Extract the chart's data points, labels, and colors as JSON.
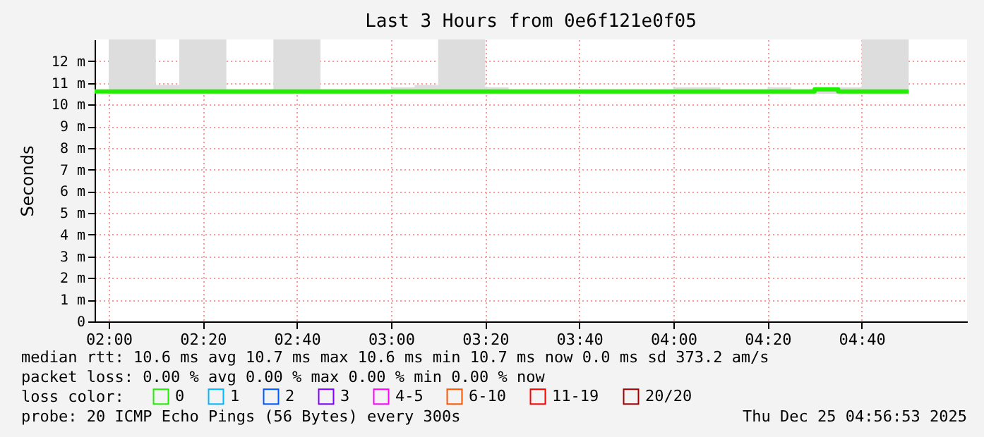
{
  "chart_data": {
    "type": "step",
    "title": "Last 3 Hours from 0e6f121e0f05",
    "ylabel": "Seconds",
    "x": [
      1.95,
      2.0,
      2.0833,
      2.1667,
      2.25,
      2.3333,
      2.4167,
      2.5,
      2.5833,
      2.6667,
      2.75,
      2.8333,
      2.9167,
      3.0,
      3.0833,
      3.1667,
      3.25,
      3.3333,
      3.4167,
      3.5,
      3.5833,
      3.6667,
      3.75,
      3.8333,
      3.9167,
      4.0,
      4.0833,
      4.1667,
      4.25,
      4.3333,
      4.4167,
      4.5,
      4.5833,
      4.6667,
      4.75,
      4.8333
    ],
    "series": [
      {
        "name": "0",
        "color": "#20f000",
        "values": [
          10.6,
          10.6,
          10.6,
          10.6,
          10.6,
          10.6,
          10.6,
          10.6,
          10.6,
          10.6,
          10.6,
          10.6,
          10.6,
          10.6,
          10.6,
          10.6,
          10.6,
          10.6,
          10.6,
          10.6,
          10.6,
          10.6,
          10.6,
          10.6,
          10.6,
          10.6,
          10.6,
          10.6,
          10.6,
          10.6,
          10.6,
          10.7,
          10.6,
          10.6,
          10.6,
          10.6
        ],
        "lower": [
          10.6,
          10.5,
          10.5,
          10.5,
          10.5,
          10.5,
          10.5,
          10.5,
          10.5,
          10.5,
          10.5,
          10.5,
          10.5,
          10.5,
          10.5,
          10.5,
          10.5,
          10.5,
          10.5,
          10.5,
          10.5,
          10.5,
          10.5,
          10.5,
          10.5,
          10.5,
          10.5,
          10.5,
          10.5,
          10.5,
          10.5,
          10.5,
          10.5,
          10.5,
          10.5,
          10.5
        ],
        "upper": [
          10.6,
          13,
          13,
          10.9,
          13,
          13,
          10.7,
          10.7,
          13,
          13,
          10.7,
          10.7,
          10.7,
          10.8,
          10.9,
          13,
          13,
          10.8,
          10.7,
          10.7,
          10.7,
          10.7,
          10.7,
          10.7,
          10.7,
          10.8,
          10.8,
          10.7,
          10.7,
          10.8,
          10.7,
          10.8,
          10.8,
          13,
          13,
          10.6
        ]
      },
      {
        "name": "1",
        "color": "#00b8ff",
        "values": [
          null,
          null,
          null,
          null,
          null,
          null,
          null,
          null,
          null,
          null,
          null,
          null,
          null,
          null,
          null,
          null,
          null,
          null,
          null,
          null,
          null,
          null,
          null,
          null,
          null,
          null,
          null,
          null,
          null,
          null,
          null,
          null,
          null,
          null,
          null,
          null
        ]
      },
      {
        "name": "2",
        "color": "#0059ff",
        "values": [
          null,
          null,
          null,
          null,
          null,
          null,
          null,
          null,
          null,
          null,
          null,
          null,
          null,
          null,
          null,
          null,
          null,
          null,
          null,
          null,
          null,
          null,
          null,
          null,
          null,
          null,
          null,
          null,
          null,
          null,
          null,
          null,
          null,
          null,
          null,
          null
        ]
      },
      {
        "name": "3",
        "color": "#7e00ff",
        "values": [
          null,
          null,
          null,
          null,
          null,
          null,
          null,
          null,
          null,
          null,
          null,
          null,
          null,
          null,
          null,
          null,
          null,
          null,
          null,
          null,
          null,
          null,
          null,
          null,
          null,
          null,
          null,
          null,
          null,
          null,
          null,
          null,
          null,
          null,
          null,
          null
        ]
      },
      {
        "name": "4-5",
        "color": "#ff00ff",
        "values": [
          null,
          null,
          null,
          null,
          null,
          null,
          null,
          null,
          null,
          null,
          null,
          null,
          null,
          null,
          null,
          null,
          null,
          null,
          null,
          null,
          null,
          null,
          null,
          null,
          null,
          null,
          null,
          null,
          null,
          null,
          null,
          null,
          null,
          null,
          null,
          null
        ]
      },
      {
        "name": "6-10",
        "color": "#ff5500",
        "values": [
          null,
          null,
          null,
          null,
          null,
          null,
          null,
          null,
          null,
          null,
          null,
          null,
          null,
          null,
          null,
          null,
          null,
          null,
          null,
          null,
          null,
          null,
          null,
          null,
          null,
          null,
          null,
          null,
          null,
          null,
          null,
          null,
          null,
          null,
          null,
          null
        ]
      },
      {
        "name": "11-19",
        "color": "#ff0000",
        "values": [
          null,
          null,
          null,
          null,
          null,
          null,
          null,
          null,
          null,
          null,
          null,
          null,
          null,
          null,
          null,
          null,
          null,
          null,
          null,
          null,
          null,
          null,
          null,
          null,
          null,
          null,
          null,
          null,
          null,
          null,
          null,
          null,
          null,
          null,
          null,
          null
        ]
      },
      {
        "name": "20/20",
        "color": "#a10000",
        "values": [
          null,
          null,
          null,
          null,
          null,
          null,
          null,
          null,
          null,
          null,
          null,
          null,
          null,
          null,
          null,
          null,
          null,
          null,
          null,
          null,
          null,
          null,
          null,
          null,
          null,
          null,
          null,
          null,
          null,
          null,
          null,
          null,
          null,
          null,
          null,
          null
        ]
      }
    ],
    "legend_title": "loss color:",
    "legend": "bottom",
    "xlim": [
      1.95,
      5.04
    ],
    "ylim": [
      0,
      13
    ],
    "xticks": [
      {
        "value": 2.0,
        "label": "02:00"
      },
      {
        "value": 2.3333,
        "label": "02:20"
      },
      {
        "value": 2.6667,
        "label": "02:40"
      },
      {
        "value": 3.0,
        "label": "03:00"
      },
      {
        "value": 3.3333,
        "label": "03:20"
      },
      {
        "value": 3.6667,
        "label": "03:40"
      },
      {
        "value": 4.0,
        "label": "04:00"
      },
      {
        "value": 4.3333,
        "label": "04:20"
      },
      {
        "value": 4.6667,
        "label": "04:40"
      }
    ],
    "yticks": [
      0,
      {
        "value": 1,
        "label": "1 m"
      },
      {
        "value": 2,
        "label": "2 m"
      },
      {
        "value": 3,
        "label": "3 m"
      },
      {
        "value": 4,
        "label": "4 m"
      },
      {
        "value": 5,
        "label": "5 m"
      },
      {
        "value": 6,
        "label": "6 m"
      },
      {
        "value": 7,
        "label": "7 m"
      },
      {
        "value": 8,
        "label": "8 m"
      },
      {
        "value": 9,
        "label": "9 m"
      },
      {
        "value": 10,
        "label": "10 m"
      },
      {
        "value": 11,
        "label": "11 m"
      },
      {
        "value": 12,
        "label": "12 m"
      }
    ],
    "grid": true,
    "annotations": [
      "median rtt:  10.6 ms avg  10.7 ms max  10.6 ms min  10.7 ms now  0.0 ms sd  373.2   am/s",
      "packet loss: 0.00 % avg  0.00 % max  0.00 % min  0.00 % now",
      "probe:       20 ICMP Echo Pings (56 Bytes) every 300s",
      "Thu Dec 25 04:56:53 2025"
    ]
  }
}
